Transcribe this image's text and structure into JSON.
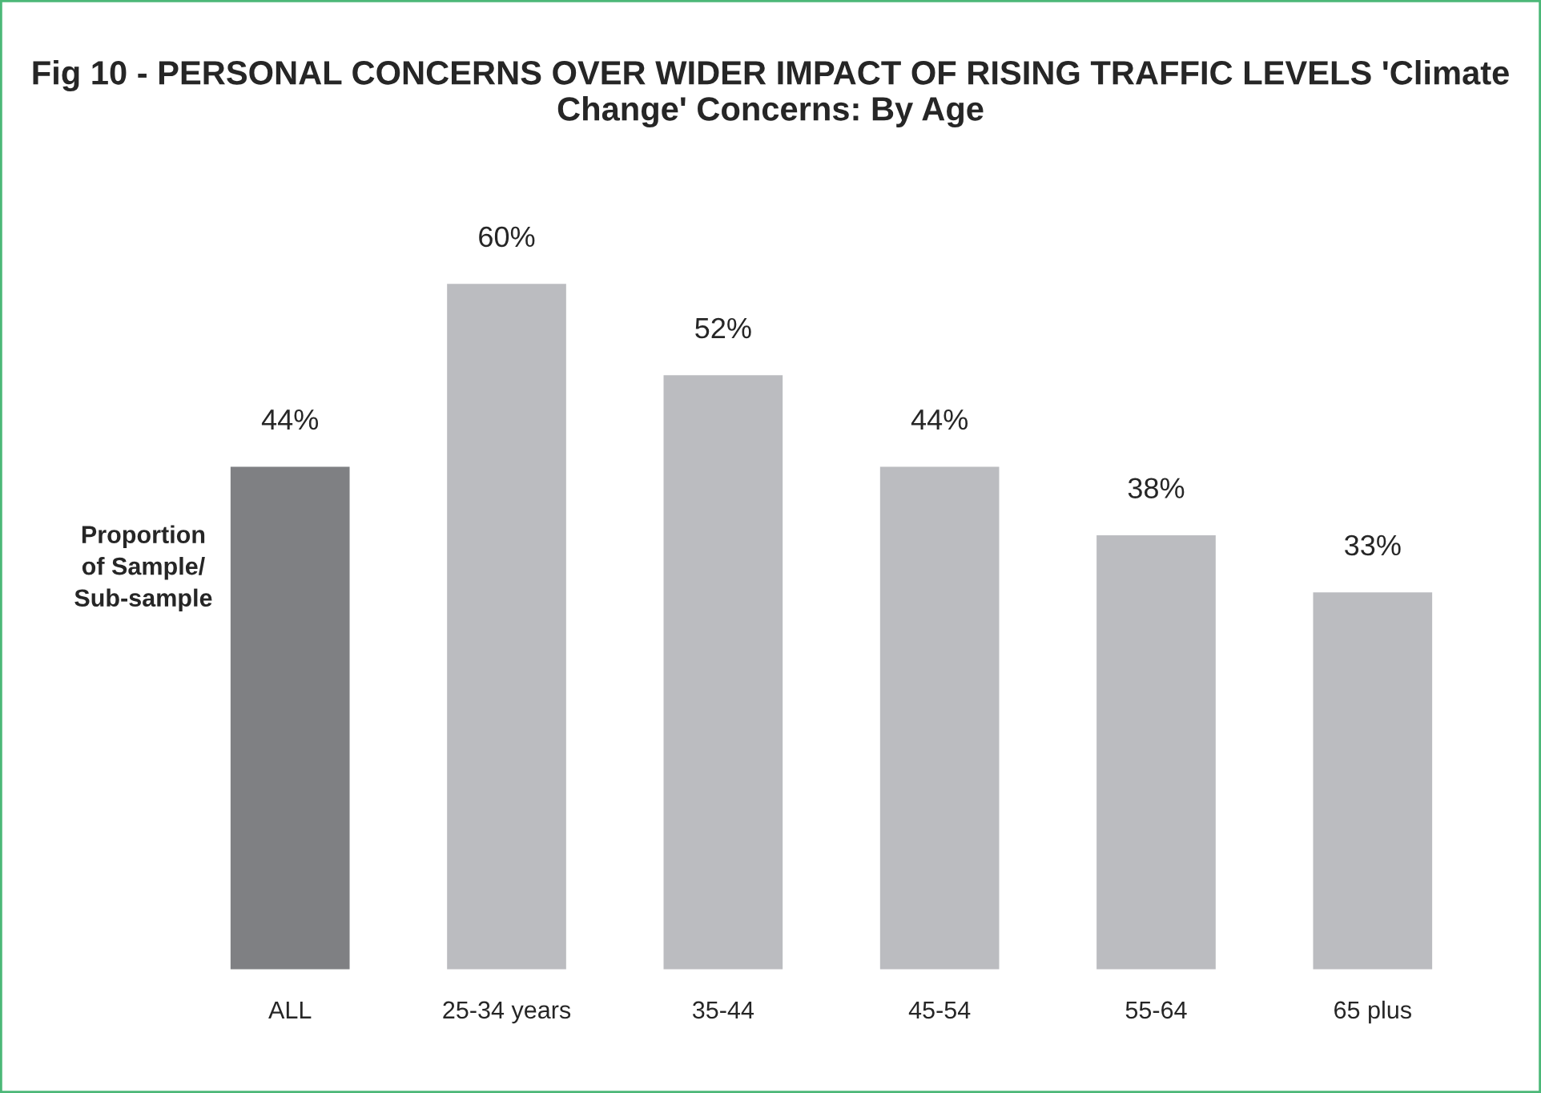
{
  "chart_data": {
    "type": "bar",
    "title": "Fig 10 - PERSONAL CONCERNS OVER WIDER IMPACT OF RISING TRAFFIC LEVELS 'Climate Change' Concerns: By Age",
    "ylabel": "Proportion\nof Sample/\nSub-sample",
    "categories": [
      "ALL",
      "25-34 years",
      "35-44",
      "45-54",
      "55-64",
      "65 plus"
    ],
    "values": [
      44,
      60,
      52,
      44,
      38,
      33
    ],
    "colors": [
      "#7f8083",
      "#bbbcc0",
      "#bbbcc0",
      "#bbbcc0",
      "#bbbcc0",
      "#bbbcc0"
    ],
    "value_labels": [
      "44%",
      "60%",
      "52%",
      "44%",
      "38%",
      "33%"
    ],
    "grid": false
  }
}
